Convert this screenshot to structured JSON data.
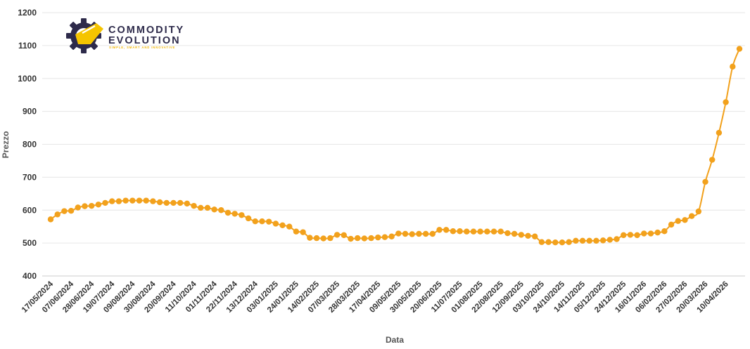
{
  "logo": {
    "line1": "COMMODITY",
    "line2": "EVOLUTION",
    "tagline": "SIMPLE, SMART AND INNOVATIVE",
    "colors": {
      "dark": "#2d2a4a",
      "accent": "#f5c400"
    }
  },
  "chart_data": {
    "type": "line",
    "xlabel": "Data",
    "ylabel": "Prezzo",
    "ylim": [
      400,
      1200
    ],
    "yticks": [
      400,
      500,
      600,
      700,
      800,
      900,
      1000,
      1100,
      1200
    ],
    "grid": true,
    "line_color": "#f2a11c",
    "xtick_labels": [
      "17/05/2024",
      "07/06/2024",
      "28/06/2024",
      "19/07/2024",
      "09/08/2024",
      "30/08/2024",
      "20/09/2024",
      "11/10/2024",
      "01/11/2024",
      "22/11/2024",
      "13/12/2024",
      "03/01/2025",
      "24/01/2025",
      "14/02/2025",
      "07/03/2025",
      "28/03/2025",
      "17/04/2025",
      "09/05/2025",
      "30/05/2025",
      "20/06/2025",
      "11/07/2025",
      "01/08/2025",
      "22/08/2025",
      "12/09/2025",
      "03/10/2025",
      "24/10/2025",
      "14/11/2025",
      "05/12/2025",
      "24/12/2025",
      "16/01/2026",
      "06/02/2026",
      "27/02/2026",
      "20/03/2026",
      "10/04/2026"
    ],
    "tick_every": 3,
    "series": [
      {
        "values": [
          572,
          587,
          597,
          598,
          608,
          612,
          613,
          617,
          622,
          627,
          627,
          629,
          629,
          629,
          629,
          627,
          624,
          622,
          622,
          622,
          620,
          613,
          607,
          607,
          602,
          600,
          592,
          589,
          585,
          575,
          566,
          566,
          565,
          559,
          554,
          550,
          535,
          533,
          516,
          515,
          514,
          515,
          525,
          524,
          513,
          515,
          514,
          515,
          517,
          518,
          520,
          529,
          528,
          527,
          528,
          528,
          528,
          540,
          540,
          536,
          536,
          535,
          535,
          535,
          535,
          535,
          535,
          530,
          528,
          525,
          522,
          520,
          503,
          503,
          502,
          502,
          503,
          507,
          507,
          507,
          507,
          508,
          510,
          512,
          524,
          525,
          524,
          529,
          529,
          532,
          536,
          556,
          567,
          570,
          582,
          596,
          686,
          753,
          835,
          928,
          1036,
          1090
        ]
      }
    ]
  }
}
